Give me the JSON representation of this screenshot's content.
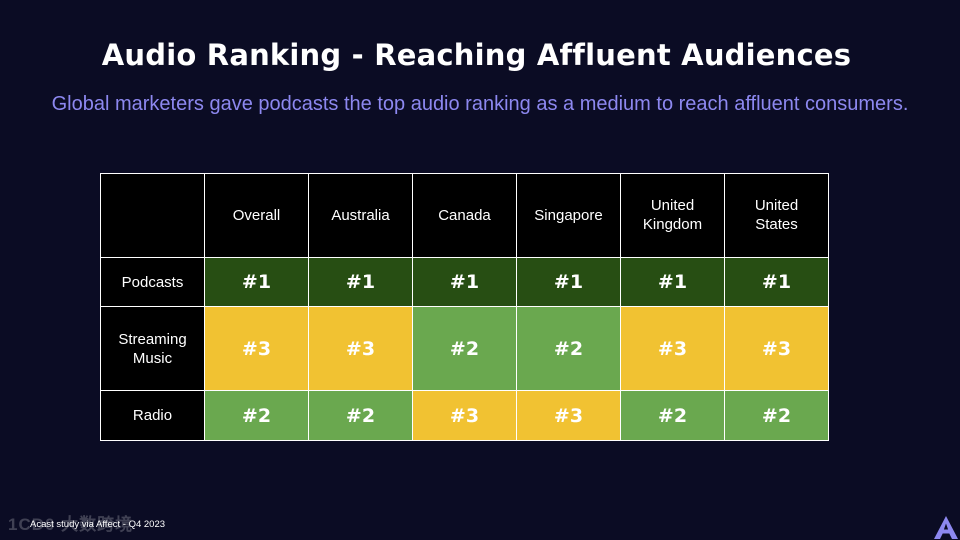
{
  "title": "Audio Ranking - Reaching Affluent Audiences",
  "subtitle": "Global marketers gave podcasts the top audio ranking as a medium to reach affluent consumers.",
  "table": {
    "columns": [
      "Overall",
      "Australia",
      "Canada",
      "Singapore",
      "United Kingdom",
      "United States"
    ],
    "rows": [
      {
        "label": "Podcasts",
        "cells": [
          "#1",
          "#1",
          "#1",
          "#1",
          "#1",
          "#1"
        ]
      },
      {
        "label": "Streaming Music",
        "cells": [
          "#3",
          "#3",
          "#2",
          "#2",
          "#3",
          "#3"
        ]
      },
      {
        "label": "Radio",
        "cells": [
          "#2",
          "#2",
          "#3",
          "#3",
          "#2",
          "#2"
        ]
      }
    ]
  },
  "colors": {
    "rank_1": "#274e13",
    "rank_2": "#6aa84f",
    "rank_3": "#f1c232",
    "background": "#0b0c24",
    "subtitle": "#8d88f0"
  },
  "footnote": "Acast study via Affect - Q4 2023",
  "watermark": "1CD0 大数跨境",
  "logo_icon": "acast-logo-icon"
}
